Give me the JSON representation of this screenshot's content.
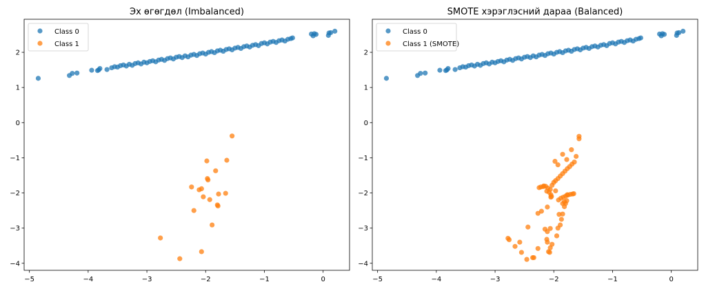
{
  "colors": {
    "class0": "#1f77b4",
    "class1": "#ff7f0e"
  },
  "chart_data": [
    {
      "type": "scatter",
      "title": "Эх өгөгдөл (Imbalanced)",
      "xlabel": "",
      "ylabel": "",
      "xlim": [
        -5.09,
        0.45
      ],
      "ylim": [
        -4.2,
        2.94
      ],
      "xticks": [
        -5,
        -4,
        -3,
        -2,
        -1,
        0
      ],
      "yticks": [
        -4,
        -3,
        -2,
        -1,
        0,
        1,
        2
      ],
      "grid": false,
      "legend_position": "top-left",
      "series": [
        {
          "name": "Class 0",
          "color_key": "class0",
          "points_ref": "class0_points"
        },
        {
          "name": "Class 1",
          "color_key": "class1",
          "points": [
            [
              -1.55,
              -0.38
            ],
            [
              -1.98,
              -1.09
            ],
            [
              -1.64,
              -1.07
            ],
            [
              -1.83,
              -1.37
            ],
            [
              -1.97,
              -1.59
            ],
            [
              -1.96,
              -1.63
            ],
            [
              -2.24,
              -1.83
            ],
            [
              -2.11,
              -1.91
            ],
            [
              -2.07,
              -1.88
            ],
            [
              -2.04,
              -2.11
            ],
            [
              -1.93,
              -2.19
            ],
            [
              -1.78,
              -2.03
            ],
            [
              -1.66,
              -2.01
            ],
            [
              -1.8,
              -2.34
            ],
            [
              -1.79,
              -2.37
            ],
            [
              -2.2,
              -2.5
            ],
            [
              -1.89,
              -2.91
            ],
            [
              -2.77,
              -3.28
            ],
            [
              -2.07,
              -3.67
            ],
            [
              -2.44,
              -3.87
            ]
          ]
        }
      ]
    },
    {
      "type": "scatter",
      "title": "SMOTE хэрэглэсний дараа (Balanced)",
      "xlabel": "",
      "ylabel": "",
      "xlim": [
        -5.09,
        0.45
      ],
      "ylim": [
        -4.2,
        2.94
      ],
      "xticks": [
        -5,
        -4,
        -3,
        -2,
        -1,
        0
      ],
      "yticks": [
        -4,
        -3,
        -2,
        -1,
        0,
        1,
        2
      ],
      "grid": false,
      "legend_position": "top-left",
      "series": [
        {
          "name": "Class 0",
          "color_key": "class0",
          "points_ref": "class0_points"
        },
        {
          "name": "Class 1 (SMOTE)",
          "color_key": "class1",
          "points": [
            [
              -1.57,
              -0.39
            ],
            [
              -1.57,
              -0.46
            ],
            [
              -1.7,
              -0.77
            ],
            [
              -1.85,
              -0.9
            ],
            [
              -1.62,
              -0.96
            ],
            [
              -1.78,
              -1.05
            ],
            [
              -1.98,
              -1.1
            ],
            [
              -1.93,
              -1.2
            ],
            [
              -1.65,
              -1.12
            ],
            [
              -1.69,
              -1.18
            ],
            [
              -1.73,
              -1.25
            ],
            [
              -1.77,
              -1.31
            ],
            [
              -1.81,
              -1.38
            ],
            [
              -1.85,
              -1.45
            ],
            [
              -1.89,
              -1.52
            ],
            [
              -1.93,
              -1.59
            ],
            [
              -1.97,
              -1.65
            ],
            [
              -2.0,
              -1.7
            ],
            [
              -2.03,
              -1.78
            ],
            [
              -2.25,
              -1.85
            ],
            [
              -2.17,
              -1.8
            ],
            [
              -2.22,
              -1.83
            ],
            [
              -2.18,
              -1.82
            ],
            [
              -2.14,
              -1.81
            ],
            [
              -2.1,
              -1.86
            ],
            [
              -2.06,
              -1.9
            ],
            [
              -2.12,
              -1.95
            ],
            [
              -2.08,
              -1.98
            ],
            [
              -2.05,
              -2.05
            ],
            [
              -2.04,
              -2.1
            ],
            [
              -1.97,
              -1.94
            ],
            [
              -2.05,
              -2.12
            ],
            [
              -1.92,
              -2.2
            ],
            [
              -1.88,
              -2.15
            ],
            [
              -1.84,
              -2.12
            ],
            [
              -1.8,
              -2.09
            ],
            [
              -1.76,
              -2.06
            ],
            [
              -1.72,
              -2.04
            ],
            [
              -1.68,
              -2.03
            ],
            [
              -1.66,
              -2.02
            ],
            [
              -1.77,
              -2.05
            ],
            [
              -1.82,
              -2.25
            ],
            [
              -1.8,
              -2.3
            ],
            [
              -1.78,
              -2.22
            ],
            [
              -1.85,
              -2.3
            ],
            [
              -1.82,
              -2.39
            ],
            [
              -2.27,
              -2.58
            ],
            [
              -2.21,
              -2.52
            ],
            [
              -2.11,
              -2.4
            ],
            [
              -1.91,
              -2.61
            ],
            [
              -1.85,
              -2.6
            ],
            [
              -1.87,
              -2.75
            ],
            [
              -1.89,
              -2.91
            ],
            [
              -1.93,
              -3.0
            ],
            [
              -2.44,
              -2.97
            ],
            [
              -2.15,
              -3.03
            ],
            [
              -2.06,
              -3.01
            ],
            [
              -2.11,
              -3.1
            ],
            [
              -1.95,
              -3.22
            ],
            [
              -2.78,
              -3.29
            ],
            [
              -2.76,
              -3.33
            ],
            [
              -2.58,
              -3.4
            ],
            [
              -2.66,
              -3.52
            ],
            [
              -2.55,
              -3.69
            ],
            [
              -2.27,
              -3.58
            ],
            [
              -2.12,
              -3.32
            ],
            [
              -2.11,
              -3.4
            ],
            [
              -2.03,
              -3.46
            ],
            [
              -2.06,
              -3.56
            ],
            [
              -2.09,
              -3.67
            ],
            [
              -2.07,
              -3.69
            ],
            [
              -2.36,
              -3.84
            ],
            [
              -2.34,
              -3.84
            ],
            [
              -2.46,
              -3.89
            ]
          ]
        }
      ]
    }
  ],
  "class0_points": [
    [
      -4.85,
      1.26
    ],
    [
      -4.32,
      1.34
    ],
    [
      -4.27,
      1.4
    ],
    [
      -4.19,
      1.41
    ],
    [
      -3.94,
      1.49
    ],
    [
      -3.84,
      1.48
    ],
    [
      -3.82,
      1.5
    ],
    [
      -3.8,
      1.54
    ],
    [
      -3.68,
      1.51
    ],
    [
      -3.6,
      1.56
    ],
    [
      -3.55,
      1.59
    ],
    [
      -3.5,
      1.58
    ],
    [
      -3.45,
      1.62
    ],
    [
      -3.4,
      1.64
    ],
    [
      -3.35,
      1.61
    ],
    [
      -3.3,
      1.66
    ],
    [
      -3.25,
      1.63
    ],
    [
      -3.2,
      1.68
    ],
    [
      -3.15,
      1.7
    ],
    [
      -3.1,
      1.67
    ],
    [
      -3.05,
      1.72
    ],
    [
      -3.0,
      1.7
    ],
    [
      -2.95,
      1.74
    ],
    [
      -2.9,
      1.76
    ],
    [
      -2.85,
      1.73
    ],
    [
      -2.8,
      1.78
    ],
    [
      -2.75,
      1.8
    ],
    [
      -2.7,
      1.77
    ],
    [
      -2.65,
      1.82
    ],
    [
      -2.6,
      1.84
    ],
    [
      -2.55,
      1.81
    ],
    [
      -2.5,
      1.86
    ],
    [
      -2.45,
      1.88
    ],
    [
      -2.4,
      1.85
    ],
    [
      -2.35,
      1.9
    ],
    [
      -2.3,
      1.87
    ],
    [
      -2.25,
      1.92
    ],
    [
      -2.2,
      1.94
    ],
    [
      -2.15,
      1.91
    ],
    [
      -2.1,
      1.96
    ],
    [
      -2.05,
      1.98
    ],
    [
      -2.0,
      1.95
    ],
    [
      -1.95,
      2.0
    ],
    [
      -1.9,
      2.02
    ],
    [
      -1.85,
      1.99
    ],
    [
      -1.8,
      2.04
    ],
    [
      -1.75,
      2.06
    ],
    [
      -1.7,
      2.03
    ],
    [
      -1.65,
      2.08
    ],
    [
      -1.6,
      2.1
    ],
    [
      -1.55,
      2.07
    ],
    [
      -1.5,
      2.12
    ],
    [
      -1.45,
      2.14
    ],
    [
      -1.4,
      2.11
    ],
    [
      -1.35,
      2.16
    ],
    [
      -1.3,
      2.18
    ],
    [
      -1.25,
      2.15
    ],
    [
      -1.2,
      2.2
    ],
    [
      -1.15,
      2.22
    ],
    [
      -1.1,
      2.19
    ],
    [
      -1.05,
      2.25
    ],
    [
      -1.0,
      2.27
    ],
    [
      -0.95,
      2.24
    ],
    [
      -0.9,
      2.29
    ],
    [
      -0.85,
      2.31
    ],
    [
      -0.8,
      2.28
    ],
    [
      -0.75,
      2.33
    ],
    [
      -0.7,
      2.35
    ],
    [
      -0.65,
      2.32
    ],
    [
      -0.6,
      2.37
    ],
    [
      -0.55,
      2.39
    ],
    [
      -0.52,
      2.41
    ],
    [
      -0.2,
      2.52
    ],
    [
      -0.17,
      2.47
    ],
    [
      -0.15,
      2.53
    ],
    [
      -0.12,
      2.51
    ],
    [
      0.09,
      2.48
    ],
    [
      0.1,
      2.55
    ],
    [
      0.13,
      2.56
    ],
    [
      0.2,
      2.6
    ]
  ]
}
